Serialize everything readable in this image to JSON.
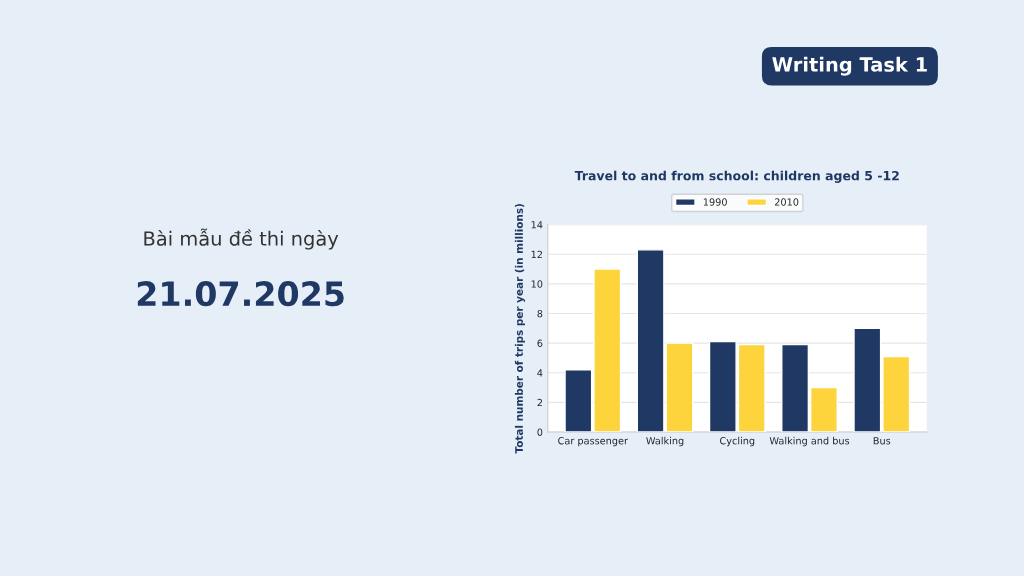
{
  "chart_data": {
    "type": "bar",
    "title": "Travel to and from school: children aged 5 -12",
    "ylabel": "Total number of trips per year (in millions)",
    "categories": [
      "Car passenger",
      "Walking",
      "Cycling",
      "Walking and bus",
      "Bus"
    ],
    "series": [
      {
        "name": "1990",
        "color": "#1f3864",
        "values": [
          4.2,
          12.3,
          6.1,
          5.9,
          7
        ]
      },
      {
        "name": "2010",
        "color": "#fdd43c",
        "values": [
          11,
          6,
          5.9,
          3,
          5.1
        ]
      }
    ],
    "ylim": [
      0,
      14
    ],
    "yticks": [
      0,
      2,
      4,
      6,
      8,
      10,
      12,
      14
    ],
    "grid": "y",
    "legend": "top",
    "annotations": [
      "Writing Task 1",
      "Bài mẫu đề thi ngày",
      "21.07.2025"
    ]
  }
}
